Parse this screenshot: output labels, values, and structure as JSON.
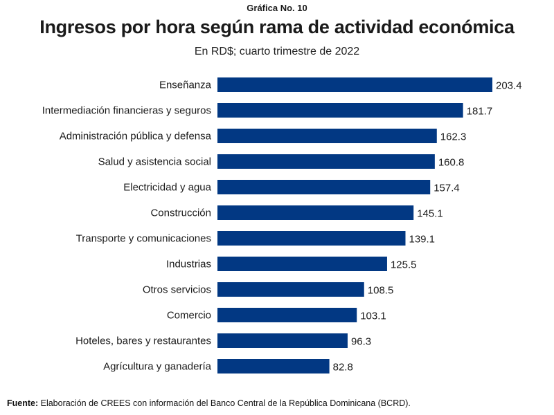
{
  "chart_data": {
    "type": "bar",
    "orientation": "horizontal",
    "kicker": "Gráfica No. 10",
    "title": "Ingresos por hora según rama de actividad económica",
    "subtitle": "En RD$; cuarto trimestre de 2022",
    "categories": [
      "Enseñanza",
      "Intermediación financieras y seguros",
      "Administración pública y defensa",
      "Salud y asistencia social",
      "Electricidad y agua",
      "Construcción",
      "Transporte y comunicaciones",
      "Industrias",
      "Otros servicios",
      "Comercio",
      "Hoteles, bares y restaurantes",
      "Agrícultura y ganadería"
    ],
    "values": [
      203.4,
      181.7,
      162.3,
      160.8,
      157.4,
      145.1,
      139.1,
      125.5,
      108.5,
      103.1,
      96.3,
      82.8
    ],
    "value_labels": [
      "203.4",
      "181.7",
      "162.3",
      "160.8",
      "157.4",
      "145.1",
      "139.1",
      "125.5",
      "108.5",
      "103.1",
      "96.3",
      "82.8"
    ],
    "xlabel": "",
    "ylabel": "",
    "xlim": [
      0,
      203.4
    ],
    "grid": false,
    "legend": "none",
    "bar_color": "#023883"
  },
  "source": {
    "label": "Fuente:",
    "text": " Elaboración de CREES con información del Banco Central de la República Dominicana (BCRD)."
  }
}
